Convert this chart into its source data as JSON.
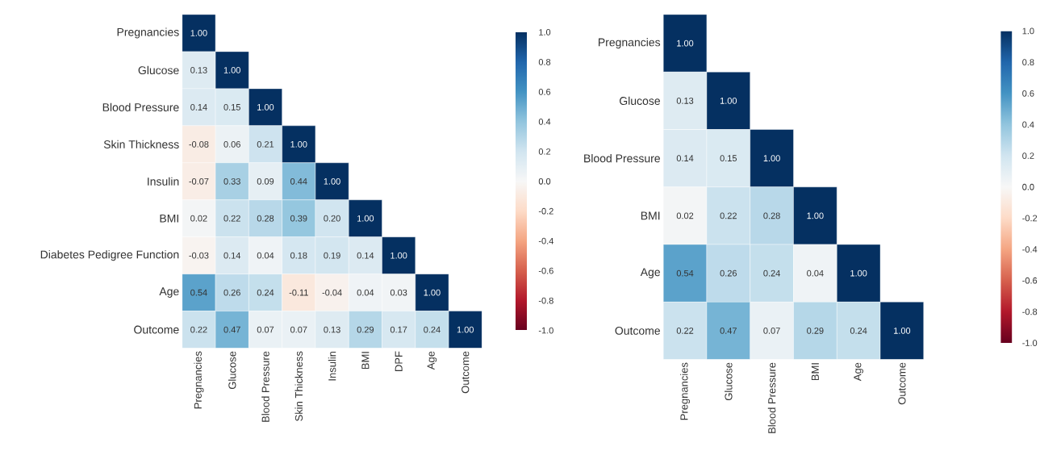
{
  "chart_data": [
    {
      "type": "heatmap",
      "categories": [
        "Pregnancies",
        "Glucose",
        "Blood Pressure",
        "Skin Thickness",
        "Insulin",
        "BMI",
        "DPF",
        "Age",
        "Outcome"
      ],
      "y_categories": [
        "Pregnancies",
        "Glucose",
        "Blood Pressure",
        "Skin Thickness",
        "Insulin",
        "BMI",
        "Diabetes Pedigree Function",
        "Age",
        "Outcome"
      ],
      "cells": [
        [
          1.0,
          null,
          null,
          null,
          null,
          null,
          null,
          null,
          null
        ],
        [
          0.13,
          1.0,
          null,
          null,
          null,
          null,
          null,
          null,
          null
        ],
        [
          0.14,
          0.15,
          1.0,
          null,
          null,
          null,
          null,
          null,
          null
        ],
        [
          -0.08,
          0.06,
          0.21,
          1.0,
          null,
          null,
          null,
          null,
          null
        ],
        [
          -0.07,
          0.33,
          0.09,
          0.44,
          1.0,
          null,
          null,
          null,
          null
        ],
        [
          0.02,
          0.22,
          0.28,
          0.39,
          0.2,
          1.0,
          null,
          null,
          null
        ],
        [
          -0.03,
          0.14,
          0.04,
          0.18,
          0.19,
          0.14,
          1.0,
          null,
          null
        ],
        [
          0.54,
          0.26,
          0.24,
          -0.11,
          -0.04,
          0.04,
          0.03,
          1.0,
          null
        ],
        [
          0.22,
          0.47,
          0.07,
          0.07,
          0.13,
          0.29,
          0.17,
          0.24,
          1.0
        ]
      ],
      "cell_labels": [
        [
          "1.00",
          null,
          null,
          null,
          null,
          null,
          null,
          null,
          null
        ],
        [
          "0.13",
          "1.00",
          null,
          null,
          null,
          null,
          null,
          null,
          null
        ],
        [
          "0.14",
          "0.15",
          "1.00",
          null,
          null,
          null,
          null,
          null,
          null
        ],
        [
          "-0.08",
          "0.06",
          "0.21",
          "1.00",
          null,
          null,
          null,
          null,
          null
        ],
        [
          "-0.07",
          "0.33",
          "0.09",
          "0.44",
          "1.00",
          null,
          null,
          null,
          null
        ],
        [
          "0.02",
          "0.22",
          "0.28",
          "0.39",
          "0.20",
          "1.00",
          null,
          null,
          null
        ],
        [
          "-0.03",
          "0.14",
          "0.04",
          "0.18",
          "0.19",
          "0.14",
          "1.00",
          null,
          null
        ],
        [
          "0.54",
          "0.26",
          "0.24",
          "-0.11",
          "-0.04",
          "0.04",
          "0.03",
          "1.00",
          null
        ],
        [
          "0.22",
          "0.47",
          "0.07",
          "0.07",
          "0.13",
          "0.29",
          "0.17",
          "0.24",
          "1.00"
        ]
      ],
      "clim": [
        -1,
        1
      ],
      "cticks": [
        {
          "value": -1,
          "label": "-1.0"
        },
        {
          "value": -0.8,
          "label": "-0.8"
        },
        {
          "value": -0.6,
          "label": "-0.6"
        },
        {
          "value": -0.4,
          "label": "-0.4"
        },
        {
          "value": -0.2,
          "label": "-0.2"
        },
        {
          "value": 0,
          "label": "0.0"
        },
        {
          "value": 0.2,
          "label": "0.2"
        },
        {
          "value": 0.4,
          "label": "0.4"
        },
        {
          "value": 0.6,
          "label": "0.6"
        },
        {
          "value": 0.8,
          "label": "0.8"
        },
        {
          "value": 1,
          "label": "1.0"
        }
      ]
    },
    {
      "type": "heatmap",
      "categories": [
        "Pregnancies",
        "Glucose",
        "Blood Pressure",
        "BMI",
        "Age",
        "Outcome"
      ],
      "y_categories": [
        "Pregnancies",
        "Glucose",
        "Blood Pressure",
        "BMI",
        "Age",
        "Outcome"
      ],
      "cells": [
        [
          1.0,
          null,
          null,
          null,
          null,
          null
        ],
        [
          0.13,
          1.0,
          null,
          null,
          null,
          null
        ],
        [
          0.14,
          0.15,
          1.0,
          null,
          null,
          null
        ],
        [
          0.02,
          0.22,
          0.28,
          1.0,
          null,
          null
        ],
        [
          0.54,
          0.26,
          0.24,
          0.04,
          1.0,
          null
        ],
        [
          0.22,
          0.47,
          0.07,
          0.29,
          0.24,
          1.0
        ]
      ],
      "cell_labels": [
        [
          "1.00",
          null,
          null,
          null,
          null,
          null
        ],
        [
          "0.13",
          "1.00",
          null,
          null,
          null,
          null
        ],
        [
          "0.14",
          "0.15",
          "1.00",
          null,
          null,
          null
        ],
        [
          "0.02",
          "0.22",
          "0.28",
          "1.00",
          null,
          null
        ],
        [
          "0.54",
          "0.26",
          "0.24",
          "0.04",
          "1.00",
          null
        ],
        [
          "0.22",
          "0.47",
          "0.07",
          "0.29",
          "0.24",
          "1.00"
        ]
      ],
      "clim": [
        -1,
        1
      ],
      "cticks": [
        {
          "value": -1,
          "label": "-1.0"
        },
        {
          "value": -0.8,
          "label": "-0.8"
        },
        {
          "value": -0.6,
          "label": "-0.6"
        },
        {
          "value": -0.4,
          "label": "-0.4"
        },
        {
          "value": -0.2,
          "label": "-0.2"
        },
        {
          "value": 0,
          "label": "0.0"
        },
        {
          "value": 0.2,
          "label": "0.2"
        },
        {
          "value": 0.4,
          "label": "0.4"
        },
        {
          "value": 0.6,
          "label": "0.6"
        },
        {
          "value": 0.8,
          "label": "0.8"
        },
        {
          "value": 1,
          "label": "1.0"
        }
      ]
    }
  ]
}
